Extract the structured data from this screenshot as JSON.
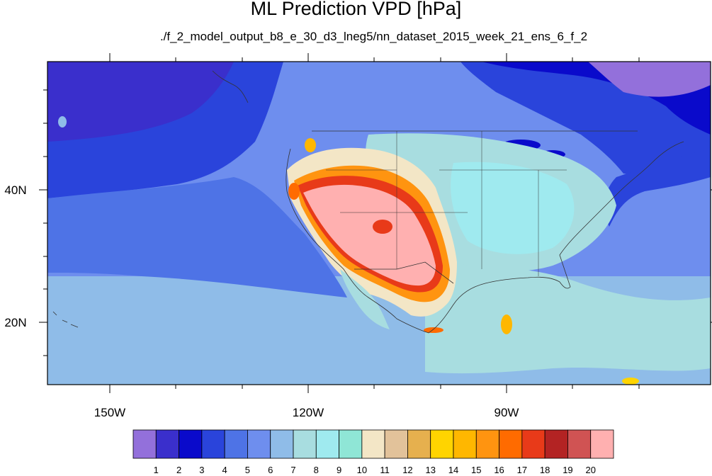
{
  "title": "ML Prediction VPD [hPa]",
  "subtitle": "./f_2_model_output_b8_e_30_d3_lneg5/nn_dataset_2015_week_21_ens_6_f_2",
  "map": {
    "lon_ticks": [
      "150W",
      "120W",
      "90W"
    ],
    "lat_ticks": [
      "40N",
      "20N"
    ]
  },
  "colorbar": {
    "labels": [
      "1",
      "2",
      "3",
      "4",
      "5",
      "6",
      "7",
      "8",
      "9",
      "10",
      "11",
      "12",
      "13",
      "14",
      "15",
      "16",
      "17",
      "18",
      "19",
      "20"
    ],
    "colors": [
      "#9370DB",
      "#3A2FCC",
      "#0A0ACB",
      "#2A44DB",
      "#4E73E6",
      "#6E8EEE",
      "#8FBCE8",
      "#A8DDE0",
      "#9FEAEF",
      "#8FE6D6",
      "#F3E6C6",
      "#E2C29A",
      "#E6B04E",
      "#FFD400",
      "#FFB700",
      "#FF9410",
      "#FF6B00",
      "#E83A19",
      "#B32323",
      "#D05353",
      "#FFB0B0"
    ]
  }
}
